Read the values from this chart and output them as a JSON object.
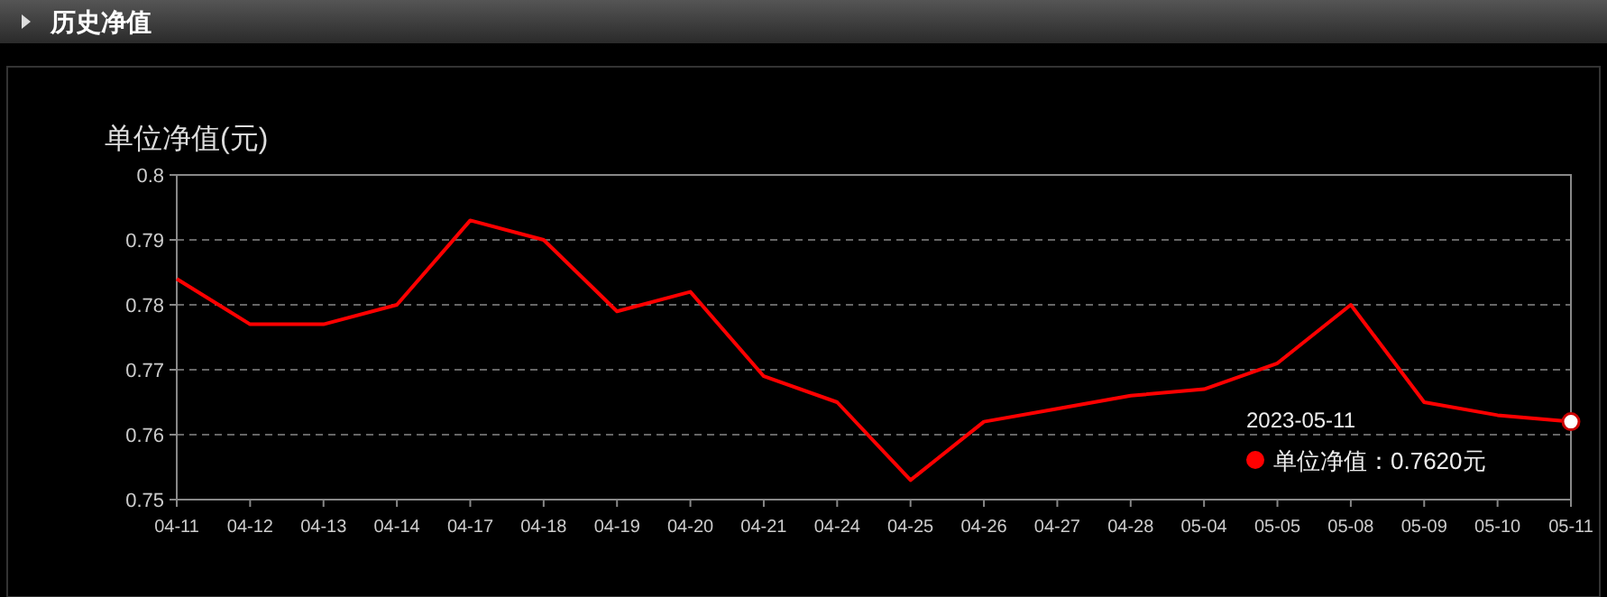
{
  "chart_data": {
    "type": "line",
    "title": "历史净值",
    "ylabel": "单位净值(元)",
    "categories": [
      "04-11",
      "04-12",
      "04-13",
      "04-14",
      "04-17",
      "04-18",
      "04-19",
      "04-20",
      "04-21",
      "04-24",
      "04-25",
      "04-26",
      "04-27",
      "04-28",
      "05-04",
      "05-05",
      "05-08",
      "05-09",
      "05-10",
      "05-11"
    ],
    "series": [
      {
        "color": "#ff0000",
        "values": [
          0.784,
          0.777,
          0.777,
          0.78,
          0.793,
          0.79,
          0.779,
          0.782,
          0.769,
          0.765,
          0.753,
          0.762,
          0.764,
          0.766,
          0.767,
          0.771,
          0.78,
          0.765,
          0.763,
          0.762
        ]
      }
    ],
    "ylim": [
      0.75,
      0.8
    ],
    "yticks": [
      0.75,
      0.76,
      0.77,
      0.78,
      0.79,
      0.8
    ],
    "grid": "y",
    "marker": "none",
    "line_style": "solid",
    "annotations": [
      "2023-05-11",
      "单位净值：0.7620元"
    ]
  }
}
